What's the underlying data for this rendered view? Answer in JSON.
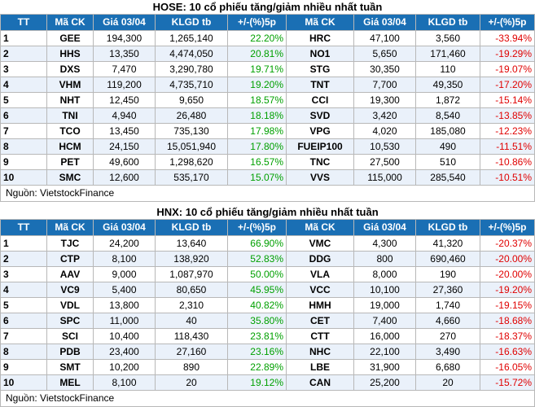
{
  "hose": {
    "title": "HOSE: 10 cổ phiếu tăng/giảm nhiều nhất tuần",
    "headers": [
      "TT",
      "Mã CK",
      "Giá 03/04",
      "KLGD tb",
      "+/-(%)5p",
      "Mã CK",
      "Giá 03/04",
      "KLGD tb",
      "+/-(%)5p"
    ],
    "rows": [
      [
        "1",
        "GEE",
        "194,300",
        "1,265,140",
        "22.20%",
        "HRC",
        "47,100",
        "3,560",
        "-33.94%"
      ],
      [
        "2",
        "HHS",
        "13,350",
        "4,474,050",
        "20.81%",
        "NO1",
        "5,650",
        "171,460",
        "-19.29%"
      ],
      [
        "3",
        "DXS",
        "7,470",
        "3,290,780",
        "19.71%",
        "STG",
        "30,350",
        "110",
        "-19.07%"
      ],
      [
        "4",
        "VHM",
        "119,200",
        "4,735,710",
        "19.20%",
        "TNT",
        "7,700",
        "49,350",
        "-17.20%"
      ],
      [
        "5",
        "NHT",
        "12,450",
        "9,650",
        "18.57%",
        "CCI",
        "19,300",
        "1,872",
        "-15.14%"
      ],
      [
        "6",
        "TNI",
        "4,940",
        "26,480",
        "18.18%",
        "SVD",
        "3,420",
        "8,540",
        "-13.85%"
      ],
      [
        "7",
        "TCO",
        "13,450",
        "735,130",
        "17.98%",
        "VPG",
        "4,020",
        "185,080",
        "-12.23%"
      ],
      [
        "8",
        "HCM",
        "24,150",
        "15,051,940",
        "17.80%",
        "FUEIP100",
        "10,530",
        "490",
        "-11.51%"
      ],
      [
        "9",
        "PET",
        "49,600",
        "1,298,620",
        "16.57%",
        "TNC",
        "27,500",
        "510",
        "-10.86%"
      ],
      [
        "10",
        "SMC",
        "12,600",
        "535,170",
        "15.07%",
        "VVS",
        "115,000",
        "285,540",
        "-10.51%"
      ]
    ],
    "source": "Nguồn: VietstockFinance"
  },
  "hnx": {
    "title": "HNX: 10 cổ phiếu tăng/giảm nhiều nhất tuần",
    "headers": [
      "TT",
      "Mã CK",
      "Giá 03/04",
      "KLGD tb",
      "+/-(%)5p",
      "Mã CK",
      "Giá 03/04",
      "KLGD tb",
      "+/-(%)5p"
    ],
    "rows": [
      [
        "1",
        "TJC",
        "24,200",
        "13,640",
        "66.90%",
        "VMC",
        "4,300",
        "41,320",
        "-20.37%"
      ],
      [
        "2",
        "CTP",
        "8,100",
        "138,920",
        "52.83%",
        "DDG",
        "800",
        "690,460",
        "-20.00%"
      ],
      [
        "3",
        "AAV",
        "9,000",
        "1,087,970",
        "50.00%",
        "VLA",
        "8,000",
        "190",
        "-20.00%"
      ],
      [
        "4",
        "VC9",
        "5,400",
        "80,650",
        "45.95%",
        "VCC",
        "10,100",
        "27,360",
        "-19.20%"
      ],
      [
        "5",
        "VDL",
        "13,800",
        "2,310",
        "40.82%",
        "HMH",
        "19,000",
        "1,740",
        "-19.15%"
      ],
      [
        "6",
        "SPC",
        "11,000",
        "40",
        "35.80%",
        "CET",
        "7,400",
        "4,660",
        "-18.68%"
      ],
      [
        "7",
        "SCI",
        "10,400",
        "118,430",
        "23.81%",
        "CTT",
        "16,000",
        "270",
        "-18.37%"
      ],
      [
        "8",
        "PDB",
        "23,400",
        "27,160",
        "23.16%",
        "NHC",
        "22,100",
        "3,490",
        "-16.63%"
      ],
      [
        "9",
        "SMT",
        "10,200",
        "890",
        "22.89%",
        "LBE",
        "31,900",
        "6,680",
        "-16.05%"
      ],
      [
        "10",
        "MEL",
        "8,100",
        "20",
        "19.12%",
        "CAN",
        "25,200",
        "20",
        "-15.72%"
      ]
    ],
    "source": "Nguồn: VietstockFinance"
  },
  "colors": {
    "header_bg": "#1a6fb4",
    "up": "#00a000",
    "down": "#e00000",
    "row_alt": "#eaf1fa"
  }
}
